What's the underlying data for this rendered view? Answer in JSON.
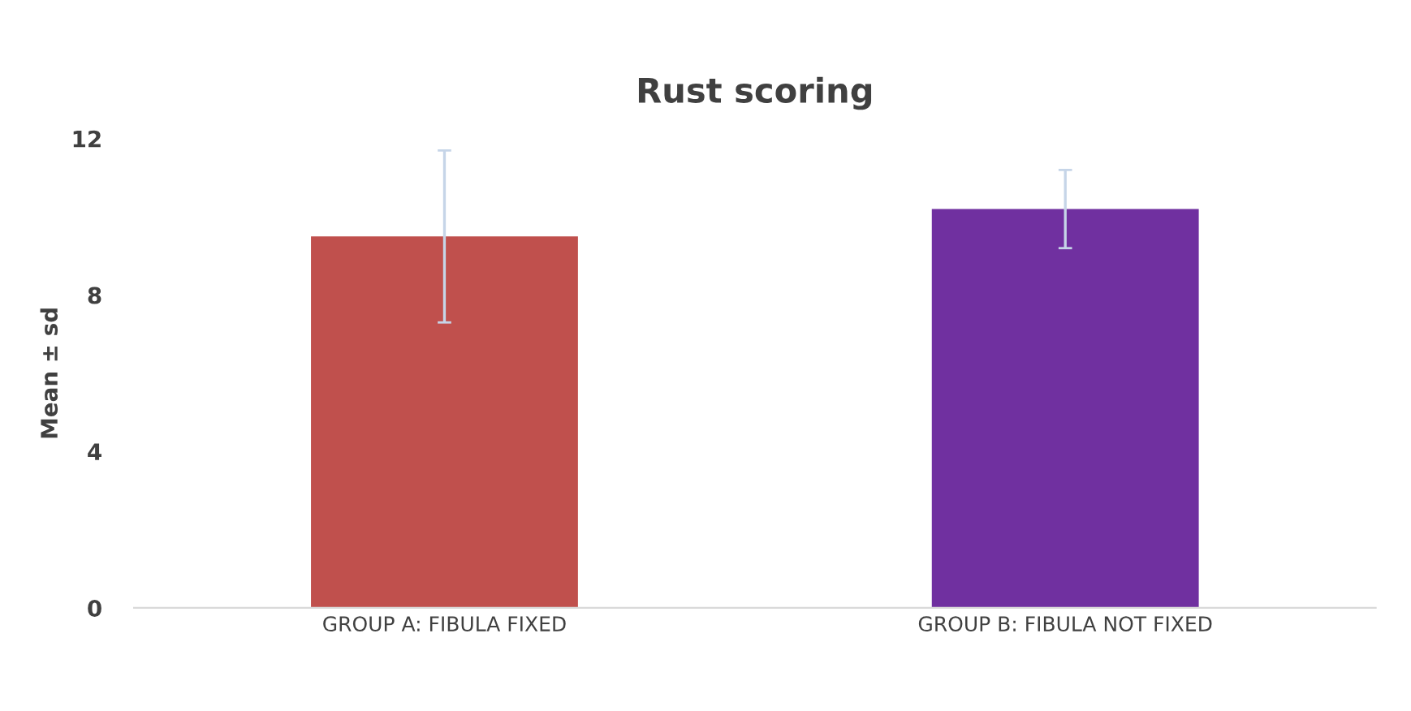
{
  "chart_data": {
    "type": "bar",
    "title": "Rust scoring",
    "ylabel": "Mean ± sd",
    "categories": [
      "GROUP A: FIBULA FIXED",
      "GROUP B: FIBULA NOT FIXED"
    ],
    "values": [
      9.5,
      10.2
    ],
    "colors": [
      "#c0504d",
      "#7030a0"
    ],
    "errors": [
      2.2,
      1.0
    ],
    "ylim": [
      0,
      12
    ],
    "yticks": [
      0,
      4,
      8,
      12
    ],
    "grid": false
  }
}
